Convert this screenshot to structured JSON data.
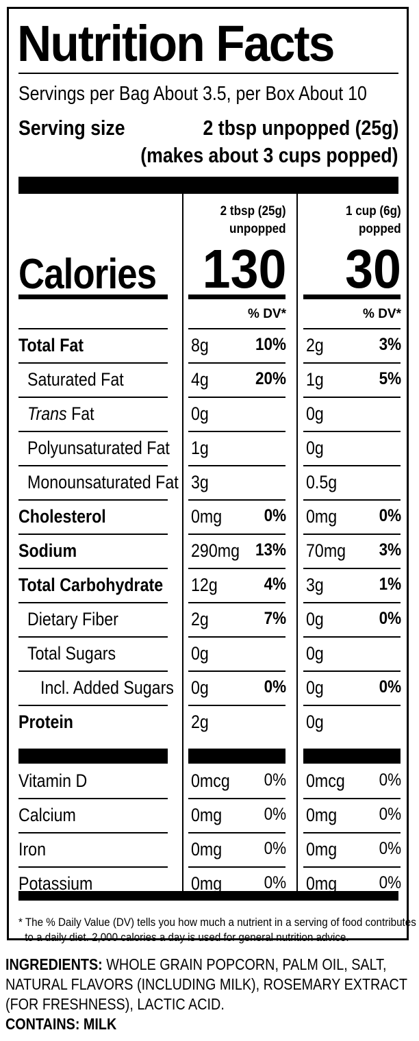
{
  "title": "Nutrition Facts",
  "servings_per_container": "Servings per Bag About 3.5, per Box About 10",
  "serving_size_label": "Serving size",
  "serving_size_value": "2 tbsp unpopped (25g)",
  "serving_size_note": "(makes about 3 cups popped)",
  "columns": [
    {
      "line1": "2 tbsp (25g)",
      "line2": "unpopped",
      "calories": "130"
    },
    {
      "line1": "1 cup (6g)",
      "line2": "popped",
      "calories": "30"
    }
  ],
  "calories_label": "Calories",
  "dv_header": "% DV*",
  "nutrients": [
    {
      "label": "Total Fat",
      "bold": true,
      "indent": 0,
      "c1": "8g",
      "p1": "10%",
      "c2": "2g",
      "p2": "3%"
    },
    {
      "label": "Saturated Fat",
      "bold": false,
      "indent": 1,
      "c1": "4g",
      "p1": "20%",
      "c2": "1g",
      "p2": "5%"
    },
    {
      "label_italic": "Trans",
      "label": " Fat",
      "bold": false,
      "indent": 1,
      "c1": "0g",
      "p1": "",
      "c2": "0g",
      "p2": ""
    },
    {
      "label": "Polyunsaturated Fat",
      "bold": false,
      "indent": 1,
      "c1": "1g",
      "p1": "",
      "c2": "0g",
      "p2": ""
    },
    {
      "label": "Monounsaturated Fat",
      "bold": false,
      "indent": 1,
      "c1": "3g",
      "p1": "",
      "c2": "0.5g",
      "p2": ""
    },
    {
      "label": "Cholesterol",
      "bold": true,
      "indent": 0,
      "c1": "0mg",
      "p1": "0%",
      "c2": "0mg",
      "p2": "0%"
    },
    {
      "label": "Sodium",
      "bold": true,
      "indent": 0,
      "c1": "290mg",
      "p1": "13%",
      "c2": "70mg",
      "p2": "3%"
    },
    {
      "label": "Total Carbohydrate",
      "bold": true,
      "indent": 0,
      "c1": "12g",
      "p1": "4%",
      "c2": "3g",
      "p2": "1%"
    },
    {
      "label": "Dietary Fiber",
      "bold": false,
      "indent": 1,
      "c1": "2g",
      "p1": "7%",
      "c2": "0g",
      "p2": "0%"
    },
    {
      "label": "Total Sugars",
      "bold": false,
      "indent": 1,
      "c1": "0g",
      "p1": "",
      "c2": "0g",
      "p2": ""
    },
    {
      "label": "Incl. Added Sugars",
      "bold": false,
      "indent": 2,
      "c1": "0g",
      "p1": "0%",
      "c2": "0g",
      "p2": "0%"
    },
    {
      "label": "Protein",
      "bold": true,
      "indent": 0,
      "c1": "2g",
      "p1": "",
      "c2": "0g",
      "p2": ""
    }
  ],
  "vitamins": [
    {
      "label": "Vitamin D",
      "c1": "0mcg",
      "p1": "0%",
      "c2": "0mcg",
      "p2": "0%"
    },
    {
      "label": "Calcium",
      "c1": "0mg",
      "p1": "0%",
      "c2": "0mg",
      "p2": "0%"
    },
    {
      "label": "Iron",
      "c1": "0mg",
      "p1": "0%",
      "c2": "0mg",
      "p2": "0%"
    },
    {
      "label": "Potassium",
      "c1": "0mg",
      "p1": "0%",
      "c2": "0mg",
      "p2": "0%"
    }
  ],
  "footnote_line1": "* The % Daily Value (DV) tells you how much a nutrient in a serving of food contributes",
  "footnote_line2": "to a daily diet. 2,000 calories a day is used for general nutrition advice.",
  "ingredients_label": "INGREDIENTS:",
  "ingredients_line1": " WHOLE GRAIN POPCORN, PALM OIL, SALT,",
  "ingredients_line2": "NATURAL FLAVORS (INCLUDING MILK), ROSEMARY EXTRACT",
  "ingredients_line3": "(FOR FRESHNESS), LACTIC ACID.",
  "contains_label": "CONTAINS:",
  "contains_value": " MILK"
}
